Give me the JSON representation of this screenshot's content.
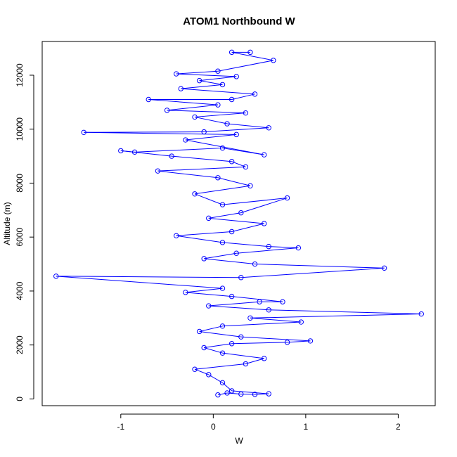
{
  "chart_data": {
    "type": "line",
    "title": "ATOM1 Northbound W",
    "xlabel": "W",
    "ylabel": "Altitude (m)",
    "xlim": [
      -1.85,
      2.4
    ],
    "ylim": [
      -250,
      13250
    ],
    "xticks": [
      -1,
      0,
      1,
      2
    ],
    "yticks": [
      0,
      2000,
      4000,
      6000,
      8000,
      10000,
      12000
    ],
    "xtick_labels": [
      "-1",
      "0",
      "1",
      "2"
    ],
    "ytick_labels": [
      "0",
      "2000",
      "4000",
      "6000",
      "8000",
      "10000",
      "12000"
    ],
    "grid": false,
    "legend": "none",
    "colors": {
      "series": "#0000ff",
      "axis": "#000000"
    },
    "series": [
      {
        "marker": "open-circle",
        "points": [
          [
            0.05,
            150
          ],
          [
            0.15,
            220
          ],
          [
            0.3,
            180
          ],
          [
            0.45,
            170
          ],
          [
            0.6,
            190
          ],
          [
            0.2,
            300
          ],
          [
            0.1,
            600
          ],
          [
            -0.05,
            900
          ],
          [
            -0.2,
            1100
          ],
          [
            0.35,
            1300
          ],
          [
            0.55,
            1500
          ],
          [
            0.1,
            1700
          ],
          [
            -0.1,
            1900
          ],
          [
            0.2,
            2050
          ],
          [
            0.8,
            2100
          ],
          [
            1.05,
            2150
          ],
          [
            0.3,
            2300
          ],
          [
            -0.15,
            2500
          ],
          [
            0.1,
            2700
          ],
          [
            0.95,
            2850
          ],
          [
            0.4,
            3000
          ],
          [
            2.25,
            3150
          ],
          [
            0.6,
            3300
          ],
          [
            -0.05,
            3450
          ],
          [
            0.5,
            3600
          ],
          [
            0.75,
            3600
          ],
          [
            0.2,
            3800
          ],
          [
            -0.3,
            3950
          ],
          [
            0.1,
            4100
          ],
          [
            -1.7,
            4550
          ],
          [
            0.3,
            4500
          ],
          [
            1.85,
            4850
          ],
          [
            0.45,
            5000
          ],
          [
            -0.1,
            5200
          ],
          [
            0.25,
            5400
          ],
          [
            0.92,
            5600
          ],
          [
            0.6,
            5650
          ],
          [
            0.1,
            5800
          ],
          [
            -0.4,
            6050
          ],
          [
            0.2,
            6200
          ],
          [
            0.55,
            6500
          ],
          [
            -0.05,
            6700
          ],
          [
            0.3,
            6900
          ],
          [
            0.8,
            7450
          ],
          [
            0.1,
            7200
          ],
          [
            -0.2,
            7600
          ],
          [
            0.4,
            7900
          ],
          [
            0.05,
            8200
          ],
          [
            -0.6,
            8450
          ],
          [
            0.35,
            8600
          ],
          [
            0.2,
            8800
          ],
          [
            -0.45,
            9000
          ],
          [
            -1.0,
            9200
          ],
          [
            -0.85,
            9150
          ],
          [
            0.1,
            9300
          ],
          [
            0.55,
            9050
          ],
          [
            -0.3,
            9600
          ],
          [
            0.25,
            9800
          ],
          [
            -1.4,
            9880
          ],
          [
            -0.1,
            9900
          ],
          [
            0.6,
            10050
          ],
          [
            0.15,
            10200
          ],
          [
            -0.2,
            10450
          ],
          [
            0.35,
            10600
          ],
          [
            -0.5,
            10700
          ],
          [
            0.05,
            10900
          ],
          [
            -0.7,
            11100
          ],
          [
            0.2,
            11100
          ],
          [
            0.45,
            11300
          ],
          [
            -0.35,
            11500
          ],
          [
            0.1,
            11650
          ],
          [
            -0.15,
            11800
          ],
          [
            0.25,
            11950
          ],
          [
            -0.4,
            12050
          ],
          [
            0.05,
            12150
          ],
          [
            0.65,
            12550
          ],
          [
            0.2,
            12850
          ],
          [
            0.4,
            12850
          ]
        ]
      }
    ]
  }
}
